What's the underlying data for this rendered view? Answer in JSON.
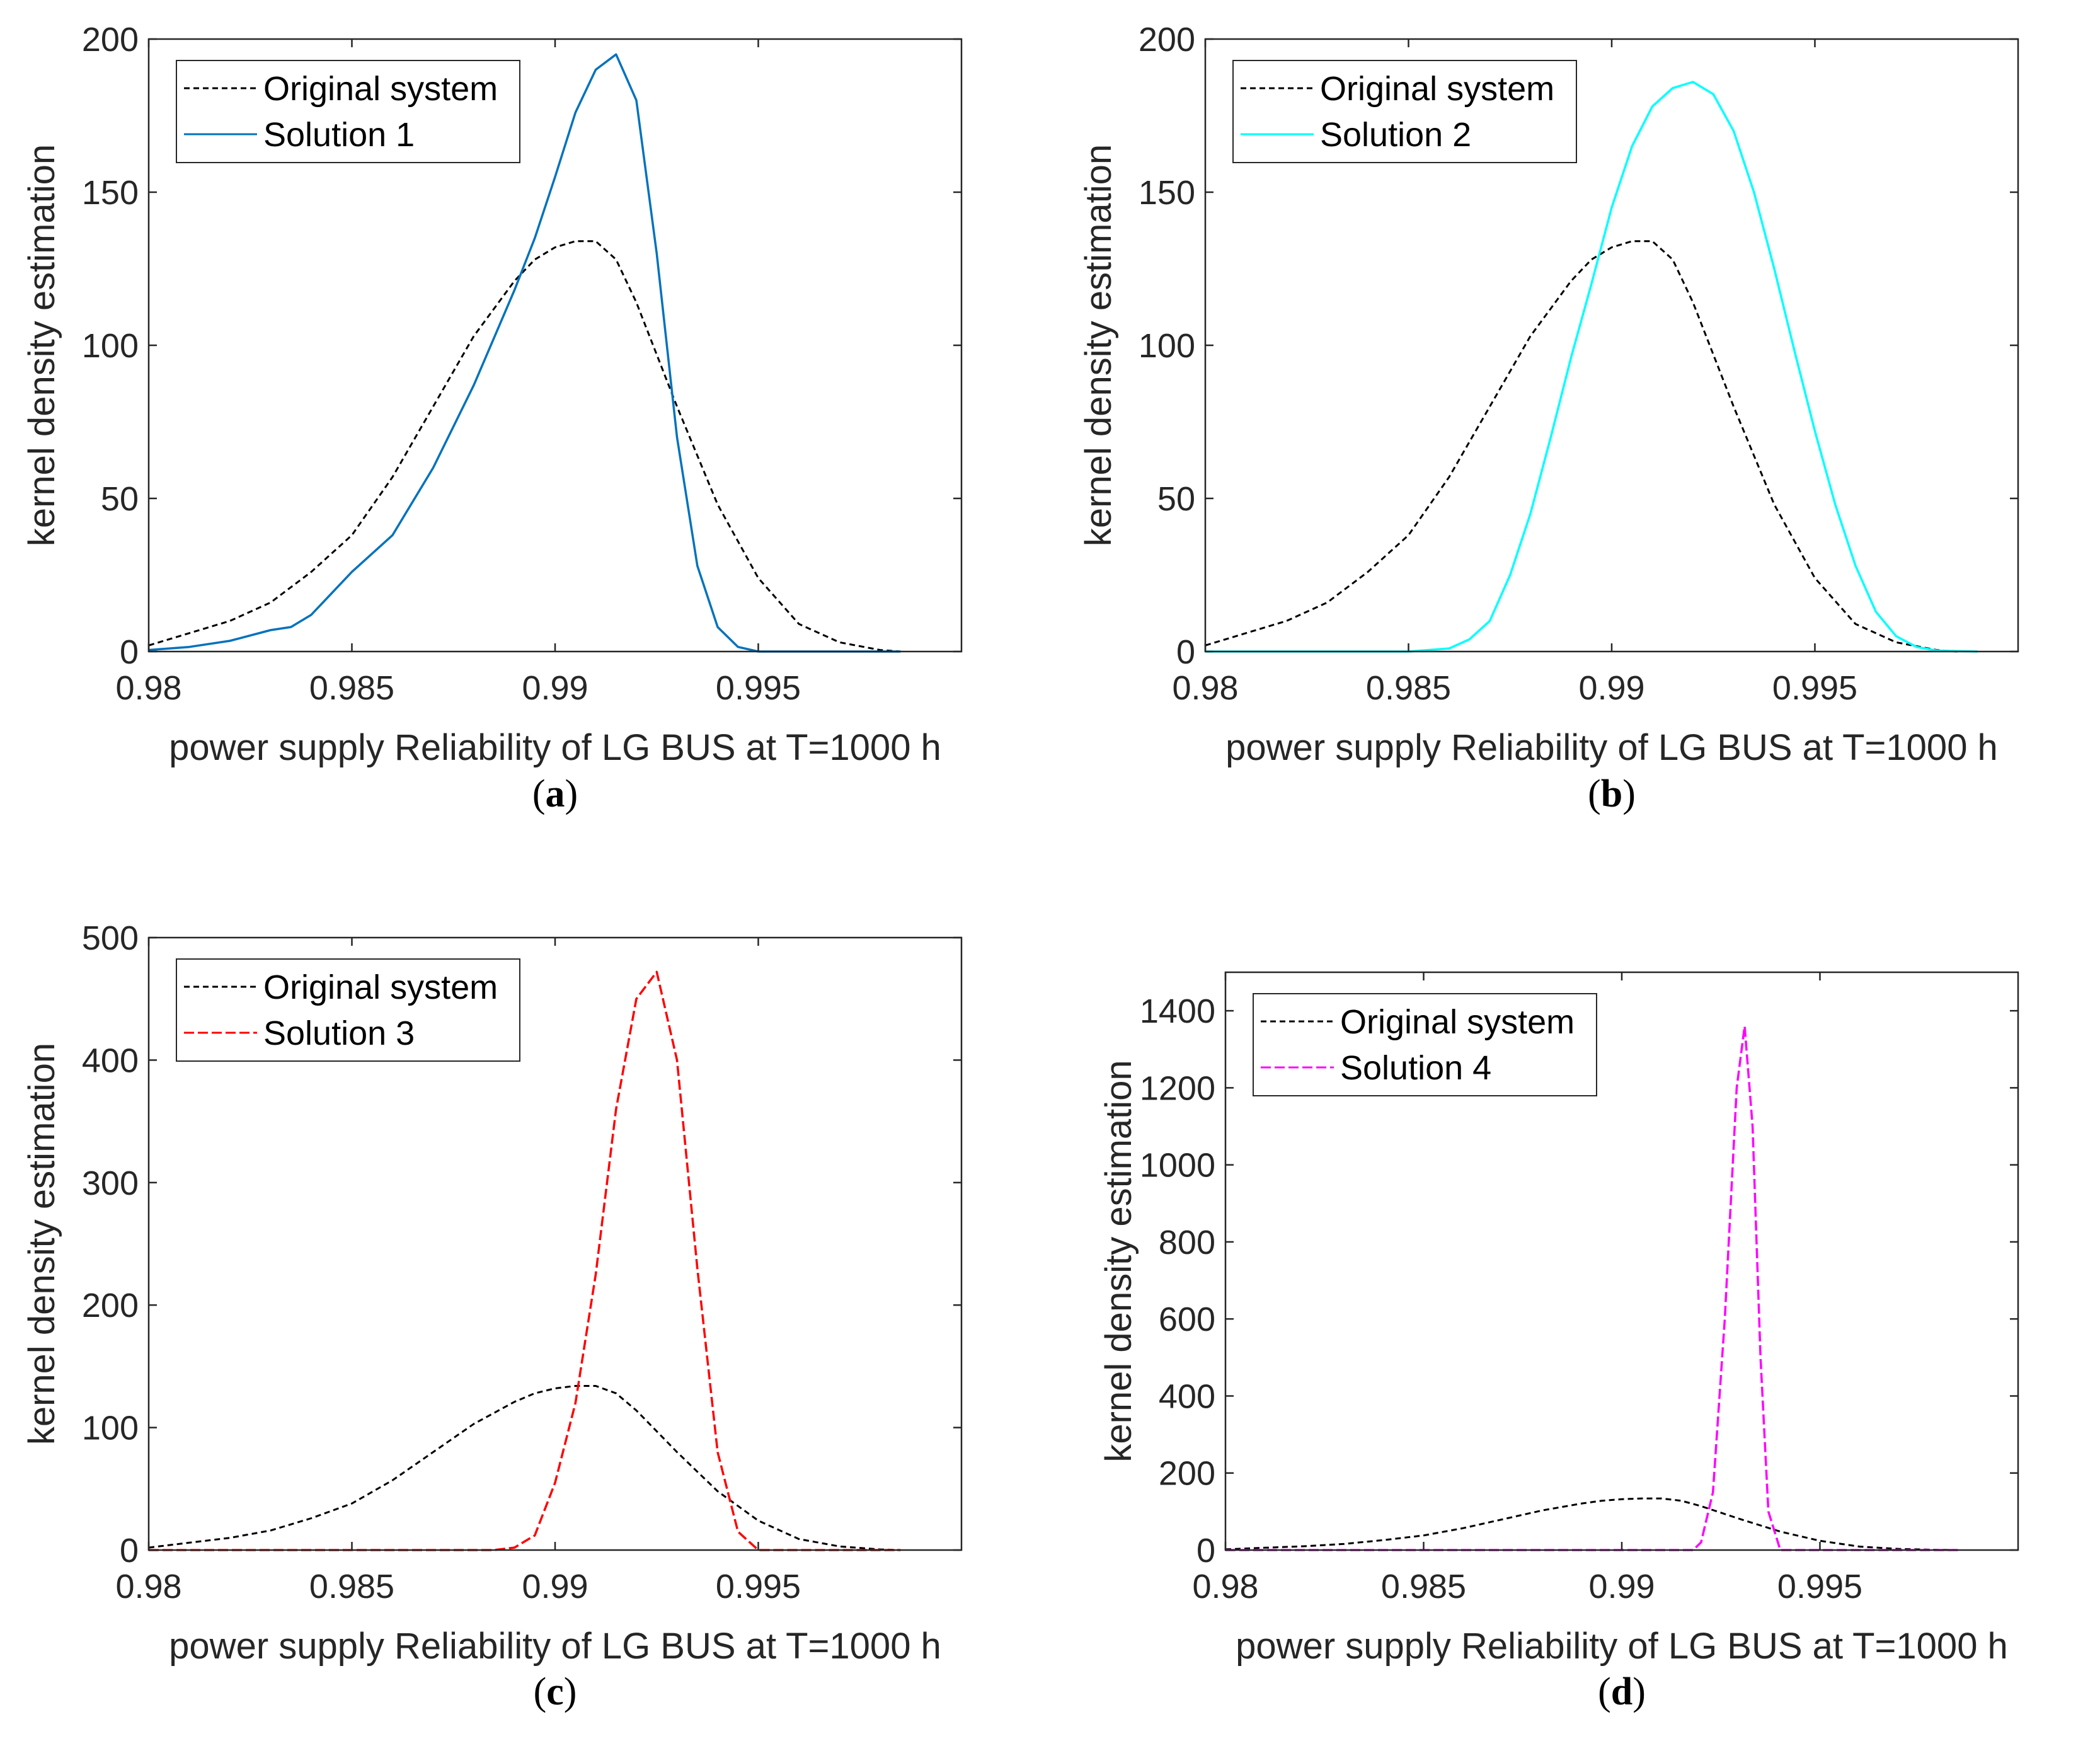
{
  "figure": {
    "panel_labels": [
      {
        "open": "(",
        "letter": "a",
        "close": ")"
      },
      {
        "open": "(",
        "letter": "b",
        "close": ")"
      },
      {
        "open": "(",
        "letter": "c",
        "close": ")"
      },
      {
        "open": "(",
        "letter": "d",
        "close": ")"
      }
    ]
  },
  "colors": {
    "original": "#000000",
    "solution1": "#0072BD",
    "solution2": "#00FFFF",
    "solution3": "#FF0000",
    "solution4": "#FF00FF",
    "axis": "#262626"
  },
  "chart_data": [
    {
      "type": "line",
      "panel": "a",
      "xlabel": "power supply Reliability of LG BUS at T=1000 h",
      "ylabel": "kernel density estimation",
      "xlim": [
        0.98,
        1.0
      ],
      "ylim": [
        0,
        200
      ],
      "xticks": [
        0.98,
        0.985,
        0.99,
        0.995
      ],
      "xtick_labels": [
        "0.98",
        "0.985",
        "0.99",
        "0.995"
      ],
      "yticks": [
        0,
        50,
        100,
        150,
        200
      ],
      "ytick_labels": [
        "0",
        "50",
        "100",
        "150",
        "200"
      ],
      "legend_position": "top-left",
      "series": [
        {
          "name": "Original system",
          "style": "dotted",
          "color": "#000000",
          "x": [
            0.98,
            0.981,
            0.982,
            0.983,
            0.984,
            0.985,
            0.986,
            0.987,
            0.988,
            0.989,
            0.9895,
            0.99,
            0.9905,
            0.991,
            0.9915,
            0.992,
            0.993,
            0.994,
            0.995,
            0.996,
            0.997,
            0.998,
            0.9985
          ],
          "y": [
            2,
            6,
            10,
            16,
            26,
            38,
            57,
            80,
            103,
            121,
            128,
            132,
            134,
            134,
            128,
            114,
            80,
            48,
            24,
            9,
            3,
            0.5,
            0
          ]
        },
        {
          "name": "Solution 1",
          "style": "solid",
          "color": "#0072BD",
          "x": [
            0.98,
            0.981,
            0.982,
            0.983,
            0.9835,
            0.984,
            0.985,
            0.986,
            0.987,
            0.988,
            0.989,
            0.9895,
            0.99,
            0.9905,
            0.991,
            0.9915,
            0.992,
            0.9925,
            0.993,
            0.9935,
            0.994,
            0.9945,
            0.995,
            0.9985
          ],
          "y": [
            0.5,
            1.5,
            3.5,
            7,
            8,
            12,
            26,
            38,
            60,
            87,
            118,
            135,
            155,
            176,
            190,
            195,
            180,
            130,
            70,
            28,
            8,
            1.5,
            0,
            0
          ]
        }
      ]
    },
    {
      "type": "line",
      "panel": "b",
      "xlabel": "power supply Reliability of LG BUS at T=1000 h",
      "ylabel": "kernel density estimation",
      "xlim": [
        0.98,
        1.0
      ],
      "ylim": [
        0,
        200
      ],
      "xticks": [
        0.98,
        0.985,
        0.99,
        0.995
      ],
      "xtick_labels": [
        "0.98",
        "0.985",
        "0.99",
        "0.995"
      ],
      "yticks": [
        0,
        50,
        100,
        150,
        200
      ],
      "ytick_labels": [
        "0",
        "50",
        "100",
        "150",
        "200"
      ],
      "legend_position": "top-left",
      "series": [
        {
          "name": "Original system",
          "style": "dotted",
          "color": "#000000",
          "x": [
            0.98,
            0.981,
            0.982,
            0.983,
            0.984,
            0.985,
            0.986,
            0.987,
            0.988,
            0.989,
            0.9895,
            0.99,
            0.9905,
            0.991,
            0.9915,
            0.992,
            0.993,
            0.994,
            0.995,
            0.996,
            0.997,
            0.998,
            0.9985
          ],
          "y": [
            2,
            6,
            10,
            16,
            26,
            38,
            57,
            80,
            103,
            121,
            128,
            132,
            134,
            134,
            128,
            114,
            80,
            48,
            24,
            9,
            3,
            0.5,
            0
          ]
        },
        {
          "name": "Solution 2",
          "style": "solid",
          "color": "#00FFFF",
          "x": [
            0.98,
            0.985,
            0.986,
            0.9865,
            0.987,
            0.9875,
            0.988,
            0.9885,
            0.989,
            0.9895,
            0.99,
            0.9905,
            0.991,
            0.9915,
            0.992,
            0.9925,
            0.993,
            0.9935,
            0.994,
            0.9945,
            0.995,
            0.9955,
            0.996,
            0.9965,
            0.997,
            0.9975,
            0.998,
            0.999
          ],
          "y": [
            0,
            0,
            1,
            4,
            10,
            25,
            45,
            70,
            96,
            120,
            145,
            165,
            178,
            184,
            186,
            182,
            170,
            150,
            125,
            98,
            72,
            48,
            28,
            13,
            5,
            1.5,
            0.3,
            0
          ]
        }
      ]
    },
    {
      "type": "line",
      "panel": "c",
      "xlabel": "power supply Reliability of LG BUS at T=1000 h",
      "ylabel": "kernel density estimation",
      "xlim": [
        0.98,
        1.0
      ],
      "ylim": [
        0,
        500
      ],
      "xticks": [
        0.98,
        0.985,
        0.99,
        0.995
      ],
      "xtick_labels": [
        "0.98",
        "0.985",
        "0.99",
        "0.995"
      ],
      "yticks": [
        0,
        100,
        200,
        300,
        400,
        500
      ],
      "ytick_labels": [
        "0",
        "100",
        "200",
        "300",
        "400",
        "500"
      ],
      "legend_position": "top-left",
      "series": [
        {
          "name": "Original system",
          "style": "dotted",
          "color": "#000000",
          "x": [
            0.98,
            0.981,
            0.982,
            0.983,
            0.984,
            0.985,
            0.986,
            0.987,
            0.988,
            0.989,
            0.9895,
            0.99,
            0.9905,
            0.991,
            0.9915,
            0.992,
            0.993,
            0.994,
            0.995,
            0.996,
            0.997,
            0.998,
            0.9985
          ],
          "y": [
            2,
            6,
            10,
            16,
            26,
            38,
            57,
            80,
            103,
            121,
            128,
            132,
            134,
            134,
            128,
            114,
            80,
            48,
            24,
            9,
            3,
            0.5,
            0
          ]
        },
        {
          "name": "Solution 3",
          "style": "dashed",
          "color": "#FF0000",
          "x": [
            0.98,
            0.9885,
            0.989,
            0.9895,
            0.99,
            0.9905,
            0.991,
            0.9915,
            0.992,
            0.9925,
            0.993,
            0.9935,
            0.994,
            0.9945,
            0.995,
            0.9985
          ],
          "y": [
            0,
            0,
            2,
            12,
            55,
            120,
            225,
            360,
            450,
            472,
            400,
            230,
            80,
            15,
            0,
            0
          ]
        }
      ]
    },
    {
      "type": "line",
      "panel": "d",
      "xlabel": "power supply Reliability of LG BUS at T=1000 h",
      "ylabel": "kernel density estimation",
      "xlim": [
        0.98,
        1.0
      ],
      "ylim": [
        0,
        1500
      ],
      "xticks": [
        0.98,
        0.985,
        0.99,
        0.995
      ],
      "xtick_labels": [
        "0.98",
        "0.985",
        "0.99",
        "0.995"
      ],
      "yticks": [
        0,
        200,
        400,
        600,
        800,
        1000,
        1200,
        1400
      ],
      "ytick_labels": [
        "0",
        "200",
        "400",
        "600",
        "800",
        "1000",
        "1200",
        "1400"
      ],
      "legend_position": "top-left",
      "series": [
        {
          "name": "Original system",
          "style": "dotted",
          "color": "#000000",
          "x": [
            0.98,
            0.981,
            0.982,
            0.983,
            0.984,
            0.985,
            0.986,
            0.987,
            0.988,
            0.989,
            0.9895,
            0.99,
            0.9905,
            0.991,
            0.9915,
            0.992,
            0.993,
            0.994,
            0.995,
            0.996,
            0.997,
            0.998,
            0.9985
          ],
          "y": [
            2,
            6,
            10,
            16,
            26,
            38,
            57,
            80,
            103,
            121,
            128,
            132,
            134,
            134,
            128,
            114,
            80,
            48,
            24,
            9,
            3,
            0.5,
            0
          ]
        },
        {
          "name": "Solution 4",
          "style": "dashed",
          "color": "#FF00FF",
          "x": [
            0.98,
            0.9918,
            0.992,
            0.9923,
            0.9926,
            0.9929,
            0.9931,
            0.9933,
            0.9935,
            0.9937,
            0.994,
            0.9985
          ],
          "y": [
            0,
            0,
            20,
            150,
            600,
            1200,
            1360,
            1100,
            500,
            100,
            0,
            0
          ]
        }
      ]
    }
  ]
}
